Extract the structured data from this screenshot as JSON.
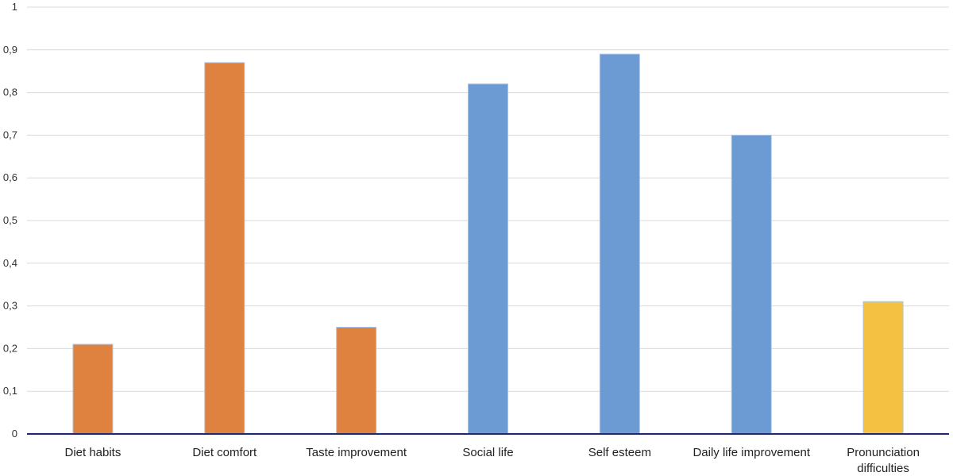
{
  "chart_data": {
    "type": "bar",
    "title": "",
    "xlabel": "",
    "ylabel": "",
    "ylim": [
      0,
      1
    ],
    "y_ticks": [
      0,
      0.1,
      0.2,
      0.3,
      0.4,
      0.5,
      0.6,
      0.7,
      0.8,
      0.9,
      1
    ],
    "y_tick_labels": [
      "0",
      "0,1",
      "0,2",
      "0,3",
      "0,4",
      "0,5",
      "0,6",
      "0,7",
      "0,8",
      "0,9",
      "1"
    ],
    "grid": true,
    "legend": "none",
    "categories": [
      "Diet habits",
      "Diet comfort",
      "Taste improvement",
      "Social life",
      "Self esteem",
      "Daily life improvement",
      "Pronunciation difficulties"
    ],
    "category_label_lines": [
      [
        "Diet habits"
      ],
      [
        "Diet comfort"
      ],
      [
        "Taste improvement"
      ],
      [
        "Social life"
      ],
      [
        "Self esteem"
      ],
      [
        "Daily life improvement"
      ],
      [
        "Pronunciation",
        "difficulties"
      ]
    ],
    "values": [
      0.21,
      0.87,
      0.25,
      0.82,
      0.89,
      0.7,
      0.31
    ],
    "bar_colors": [
      "#E0823F",
      "#E0823F",
      "#E0823F",
      "#6B9BD2",
      "#6B9BD2",
      "#6B9BD2",
      "#F4C142"
    ],
    "colors": {
      "grid": "#D9D9D9",
      "x_axis": "#1F2A6E",
      "bar_outline": "#A9C4E6"
    }
  }
}
